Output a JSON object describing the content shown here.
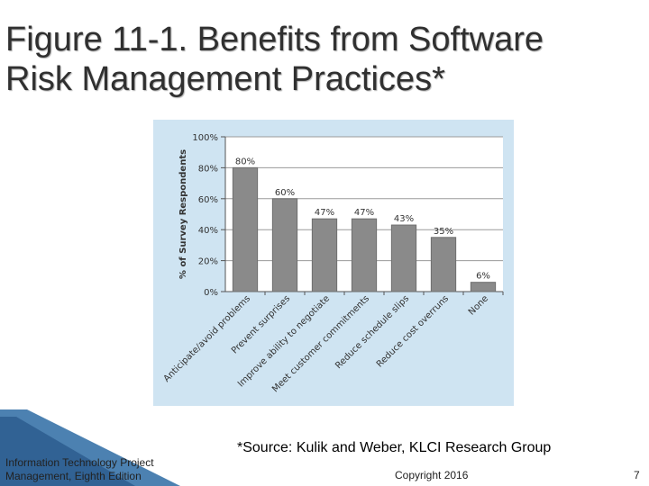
{
  "slide": {
    "title_line1": "Figure 11-1. Benefits from Software",
    "title_line2": "Risk Management Practices*",
    "source_note": "*Source: Kulik and Weber, KLCI Research Group",
    "footer_line1": "Information Technology Project",
    "footer_line2": "Management, Eighth Edition",
    "copyright": "Copyright 2016",
    "page_number": "7"
  },
  "colors": {
    "panel_bg": "#cfe4f2",
    "plot_bg": "#ffffff",
    "bar_fill": "#8a8a8a",
    "title_text": "#303030"
  },
  "chart_data": {
    "type": "bar",
    "categories": [
      "Anticipate/avoid problems",
      "Prevent surprises",
      "Improve ability to negotiate",
      "Meet customer commitments",
      "Reduce schedule slips",
      "Reduce cost overruns",
      "None"
    ],
    "values": [
      80,
      60,
      47,
      47,
      43,
      35,
      6
    ],
    "value_labels": [
      "80%",
      "60%",
      "47%",
      "47%",
      "43%",
      "35%",
      "6%"
    ],
    "ylabel": "% of Survey Respondents",
    "xlabel": "",
    "ylim": [
      0,
      100
    ],
    "yticks": [
      0,
      20,
      40,
      60,
      80,
      100
    ],
    "ytick_labels": [
      "0%",
      "20%",
      "40%",
      "60%",
      "80%",
      "100%"
    ],
    "grid": true
  }
}
